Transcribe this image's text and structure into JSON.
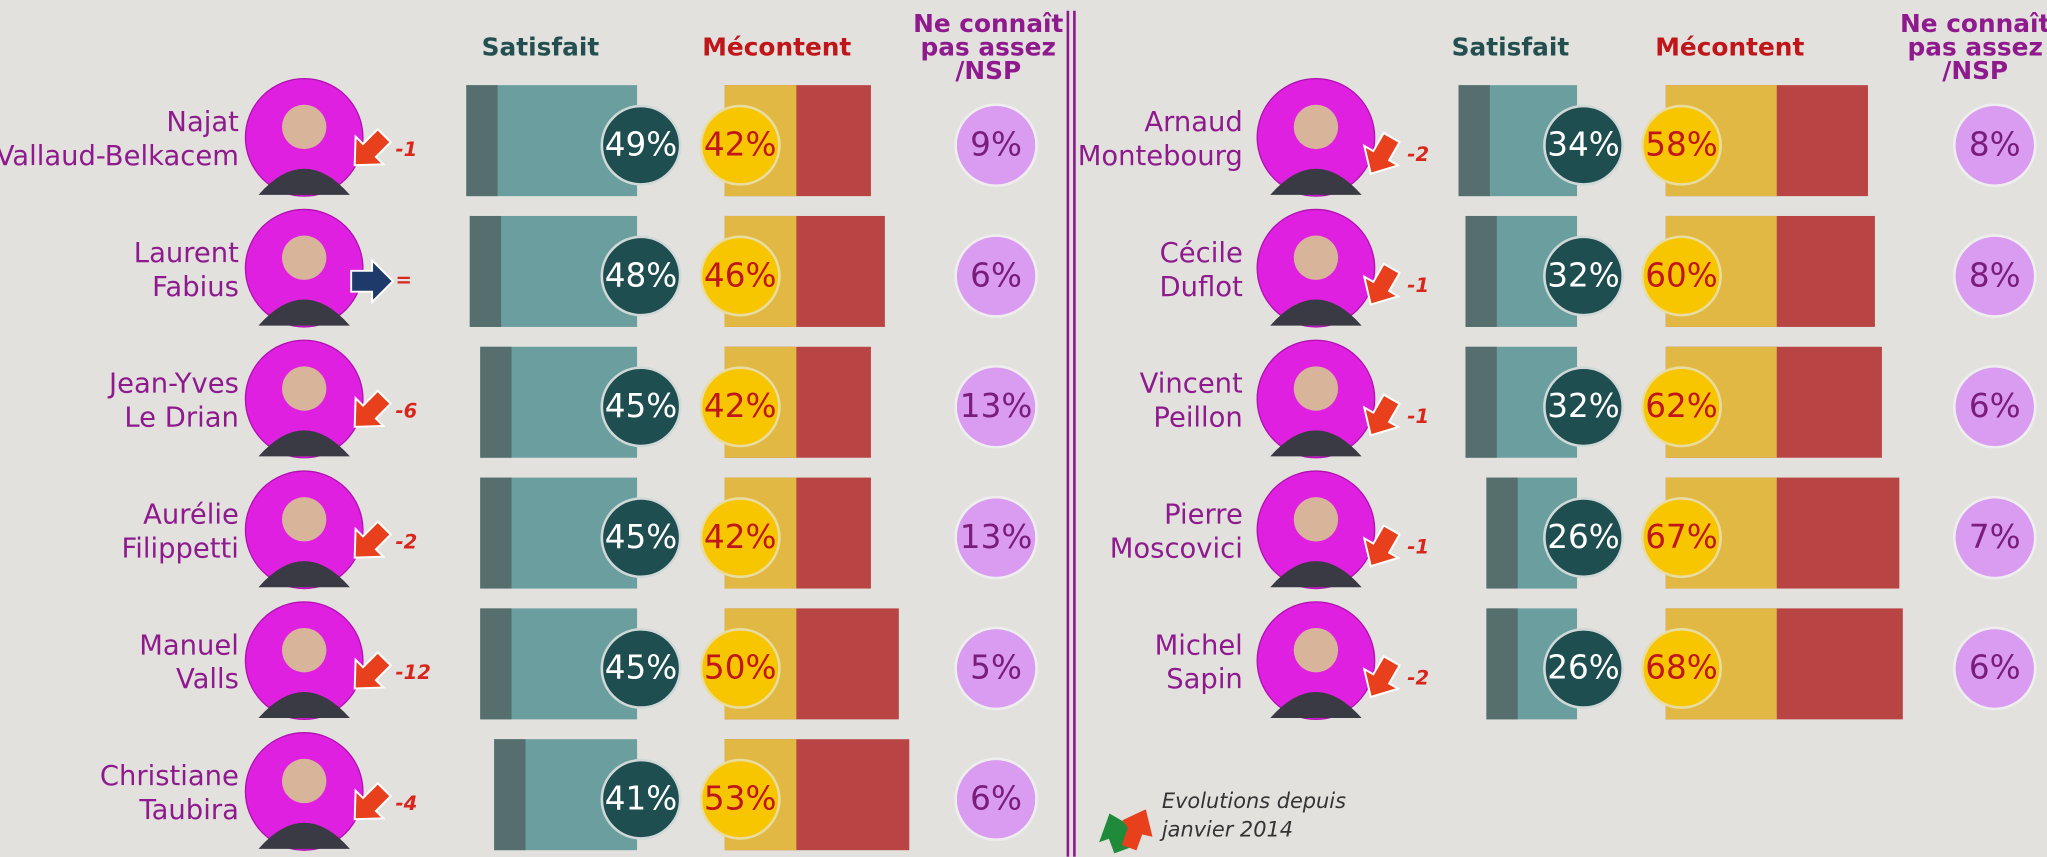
{
  "chart_data": [
    {
      "type": "bar",
      "categories": [
        "Najat\nVallaud-Belkacem",
        "Laurent\nFabius",
        "Jean-Yves\nLe Drian",
        "Aurélie\nFilippetti",
        "Manuel\nValls",
        "Christiane\nTaubira"
      ],
      "series": [
        {
          "name": "Satisfait",
          "color": "#6a9e9f",
          "values": [
            49,
            48,
            45,
            45,
            45,
            41
          ],
          "value_labels": [
            "49%",
            "48%",
            "45%",
            "45%",
            "45%",
            "41%"
          ]
        },
        {
          "name": "Mécontent",
          "color": "#b94444",
          "values": [
            42,
            46,
            42,
            42,
            50,
            53
          ],
          "value_labels": [
            "42%",
            "46%",
            "42%",
            "42%",
            "50%",
            "53%"
          ]
        },
        {
          "name": "Ne connaît\npas assez\n/NSP",
          "color": "#d99cf0",
          "values": [
            9,
            6,
            13,
            13,
            5,
            6
          ],
          "value_labels": [
            "9%",
            "6%",
            "13%",
            "13%",
            "5%",
            "6%"
          ]
        }
      ],
      "evolutions": [
        "-1",
        "=",
        "-6",
        "-2",
        "-12",
        "-4"
      ]
    },
    {
      "type": "bar",
      "categories": [
        "Arnaud\nMontebourg",
        "Cécile\nDuflot",
        "Vincent\nPeillon",
        "Pierre\nMoscovici",
        "Michel\nSapin"
      ],
      "series": [
        {
          "name": "Satisfait",
          "color": "#6a9e9f",
          "values": [
            34,
            32,
            32,
            26,
            26
          ],
          "value_labels": [
            "34%",
            "32%",
            "32%",
            "26%",
            "26%"
          ]
        },
        {
          "name": "Mécontent",
          "color": "#b94444",
          "values": [
            58,
            60,
            62,
            67,
            68
          ],
          "value_labels": [
            "58%",
            "60%",
            "62%",
            "67%",
            "68%"
          ]
        },
        {
          "name": "Ne connaît\npas assez\n/NSP",
          "color": "#d99cf0",
          "values": [
            8,
            8,
            6,
            7,
            6
          ],
          "value_labels": [
            "8%",
            "8%",
            "6%",
            "7%",
            "6%"
          ]
        }
      ],
      "evolutions": [
        "-2",
        "-1",
        "-1",
        "-1",
        "-2"
      ]
    }
  ],
  "annotation": "Evolutions depuis\njanvier 2014"
}
